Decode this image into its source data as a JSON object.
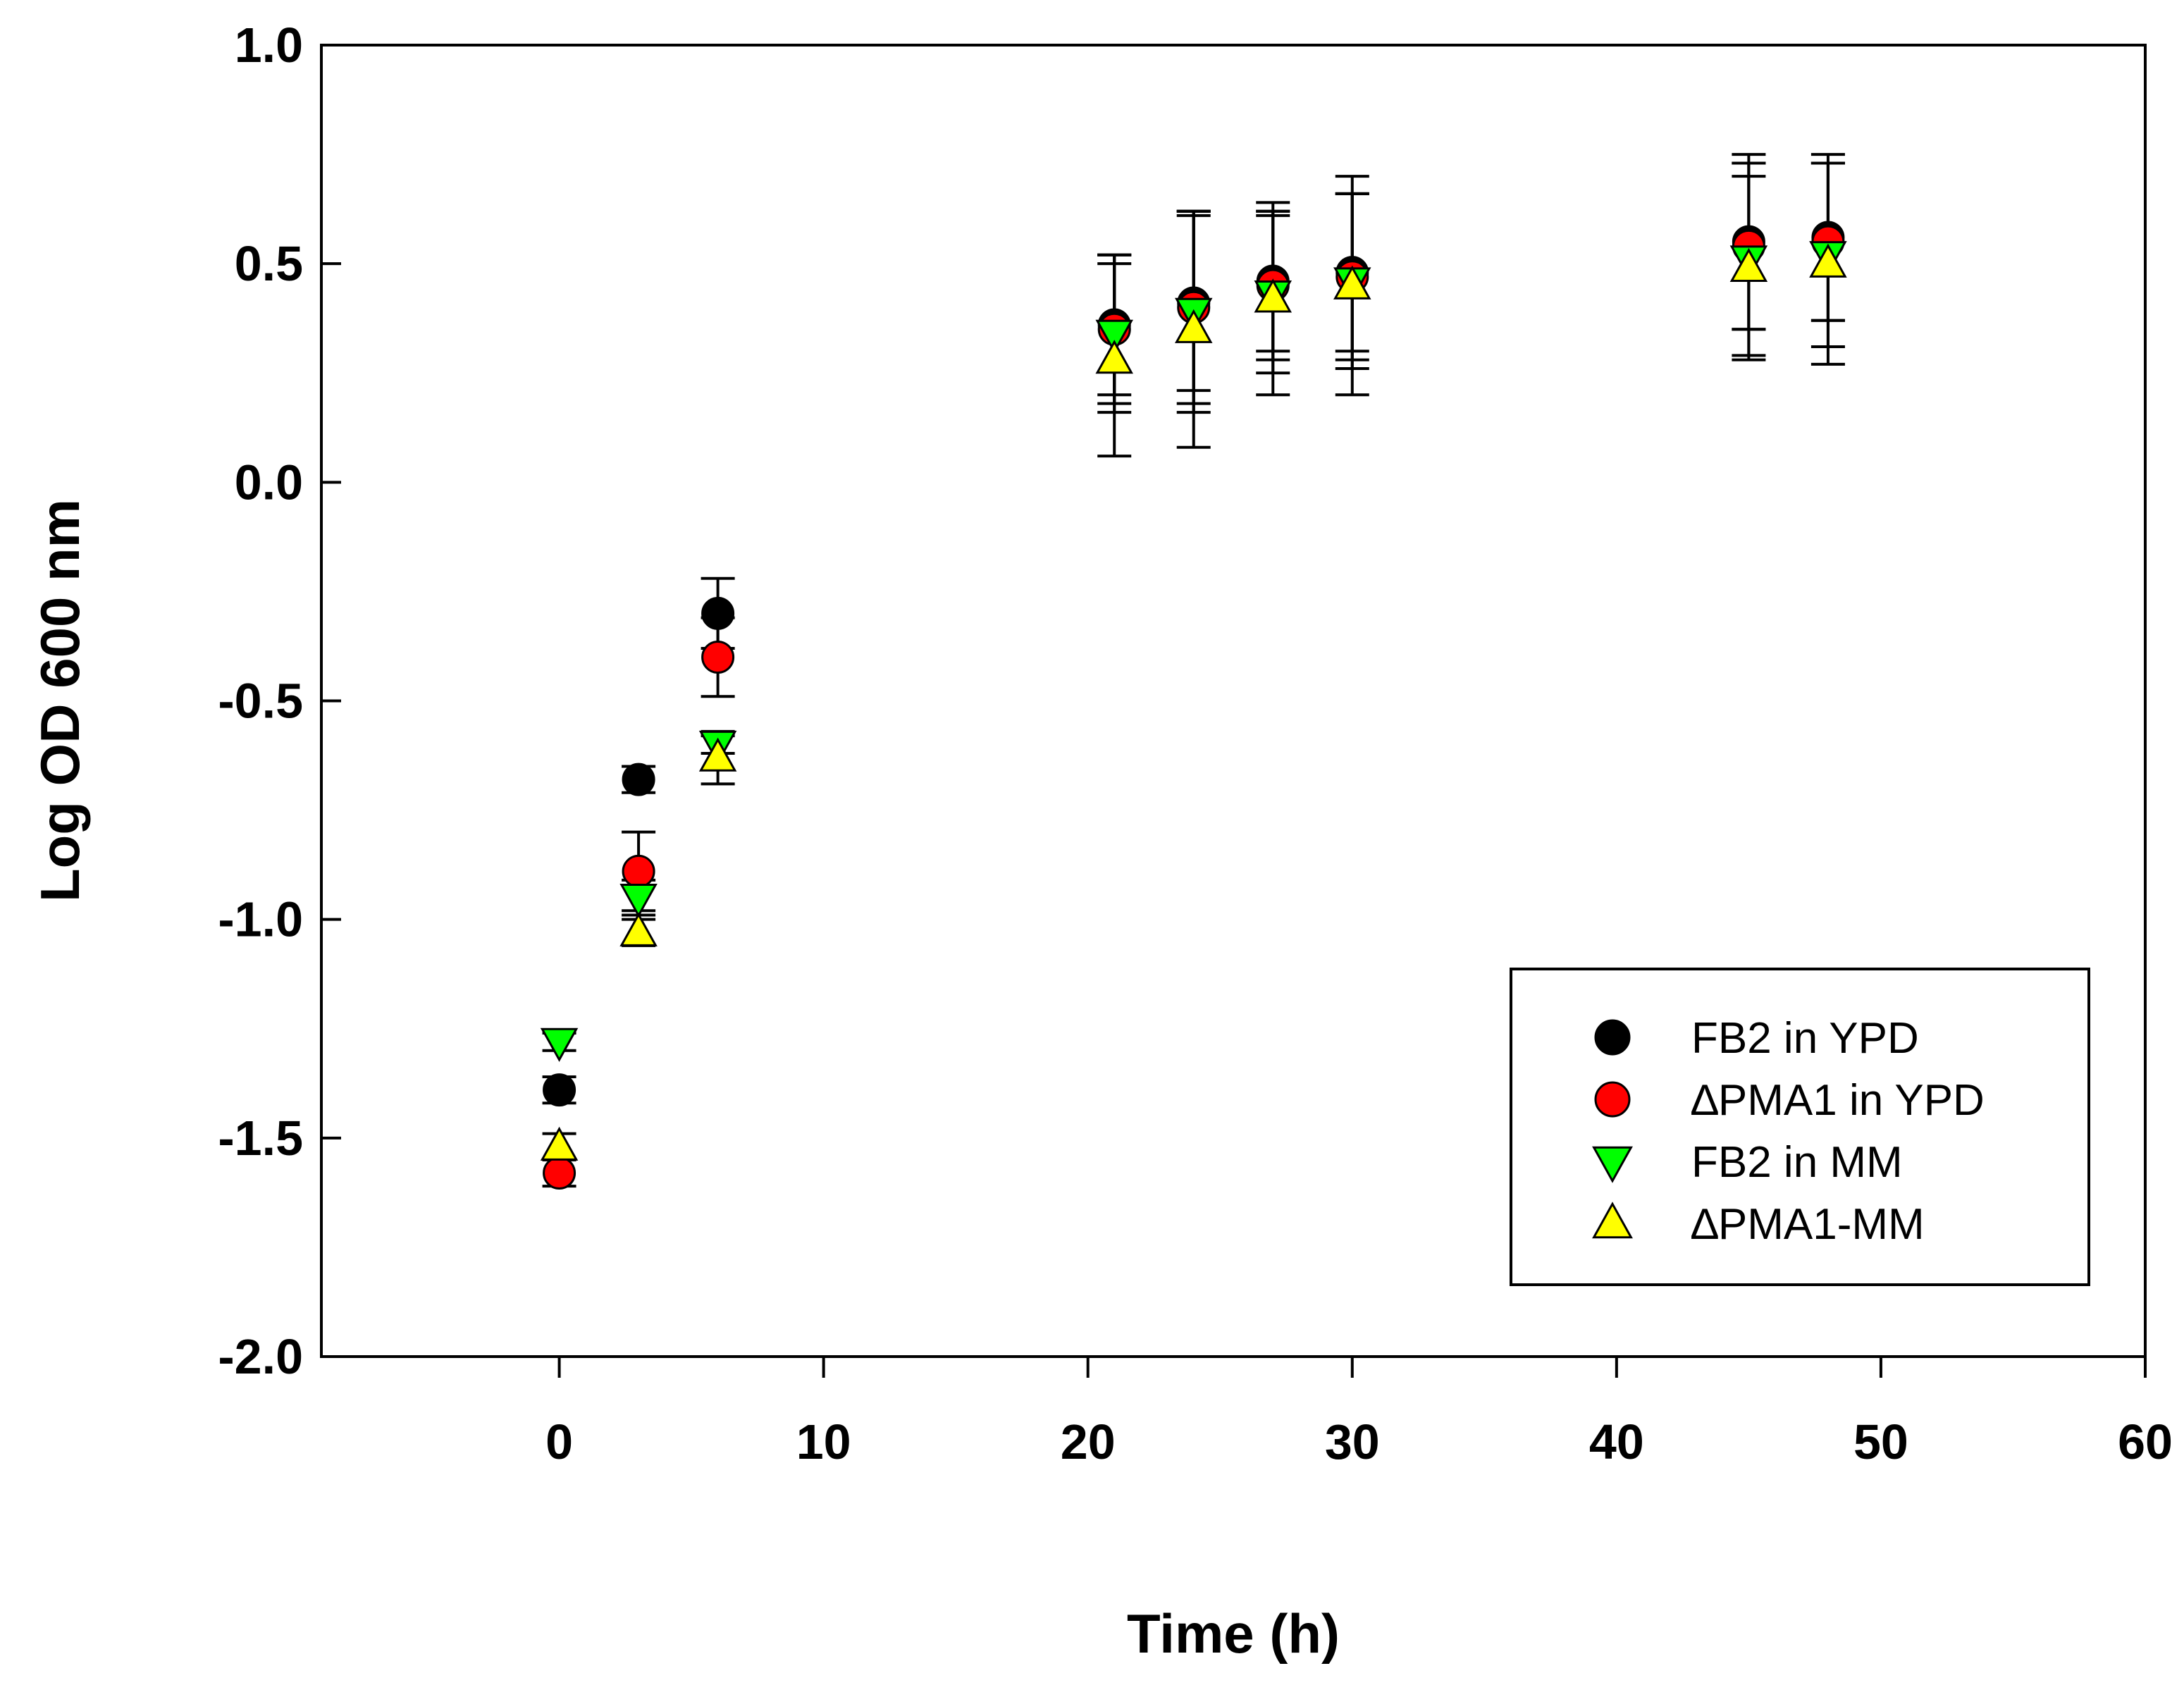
{
  "chart_data": {
    "type": "scatter",
    "title": "",
    "xlabel": "Time (h)",
    "ylabel": "Log OD 600 nm",
    "xlim": [
      -9,
      60
    ],
    "ylim": [
      -2.0,
      1.0
    ],
    "xticks": [
      0,
      10,
      20,
      30,
      40,
      50,
      60
    ],
    "xtick_labels": [
      "0",
      "10",
      "20",
      "30",
      "40",
      "50",
      "60"
    ],
    "yticks": [
      1.0,
      0.5,
      0.0,
      -0.5,
      -1.0,
      -1.5,
      -2.0
    ],
    "ytick_labels": [
      "1.0",
      "0.5",
      "0.0",
      "-0.5",
      "-1.0",
      "-1.5",
      "-2.0"
    ],
    "grid": false,
    "legend_position": "bottom-right",
    "series": [
      {
        "name": "FB2 in YPD",
        "marker": "circle",
        "color": "#000000",
        "x": [
          0,
          3,
          6,
          21,
          24,
          27,
          30,
          45,
          48
        ],
        "y": [
          -1.39,
          -0.68,
          -0.3,
          0.36,
          0.41,
          0.46,
          0.48,
          0.55,
          0.56
        ],
        "err": [
          0.03,
          0.03,
          0.08,
          0.16,
          0.2,
          0.16,
          0.18,
          0.2,
          0.19
        ]
      },
      {
        "name": "∆PMA1 in YPD",
        "marker": "circle",
        "color": "#ff0000",
        "x": [
          0,
          3,
          6,
          21,
          24,
          27,
          30,
          45,
          48
        ],
        "y": [
          -1.58,
          -0.89,
          -0.4,
          0.35,
          0.4,
          0.45,
          0.47,
          0.54,
          0.55
        ],
        "err": [
          0.03,
          0.09,
          0.09,
          0.17,
          0.22,
          0.17,
          0.19,
          0.19,
          0.18
        ]
      },
      {
        "name": "FB2 in MM",
        "marker": "triangle-down",
        "color": "#00ff00",
        "x": [
          0,
          3,
          6,
          21,
          24,
          27,
          30,
          45,
          48
        ],
        "y": [
          -1.28,
          -0.95,
          -0.6,
          0.34,
          0.39,
          0.43,
          0.46,
          0.51,
          0.52
        ],
        "err": [
          0.02,
          0.04,
          0.02,
          0.18,
          0.23,
          0.18,
          0.2,
          0.22,
          0.21
        ]
      },
      {
        "name": "∆PMA1-MM",
        "marker": "triangle-up",
        "color": "#ffff00",
        "x": [
          0,
          3,
          6,
          21,
          24,
          27,
          30,
          45,
          48
        ],
        "y": [
          -1.52,
          -1.03,
          -0.63,
          0.28,
          0.35,
          0.42,
          0.45,
          0.49,
          0.5
        ],
        "err": [
          0.03,
          0.03,
          0.06,
          0.22,
          0.27,
          0.22,
          0.25,
          0.21,
          0.23
        ]
      }
    ]
  }
}
